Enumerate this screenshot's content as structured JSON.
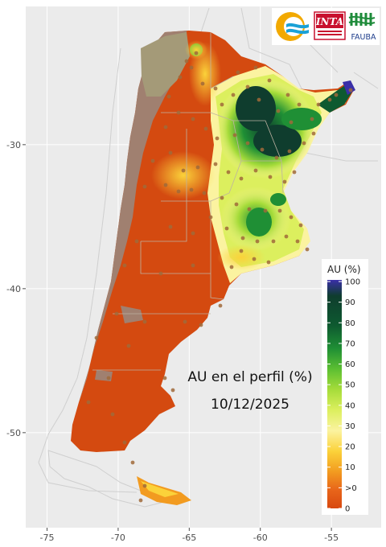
{
  "map": {
    "title": "AU en el perfil (%)",
    "date": "10/12/2025",
    "x_axis": {
      "lon_range": [
        -76.5,
        -51.5
      ],
      "ticks": [
        {
          "lon": -75,
          "label": "-75"
        },
        {
          "lon": -70,
          "label": "-70"
        },
        {
          "lon": -65,
          "label": "-65"
        },
        {
          "lon": -60,
          "label": "-60"
        },
        {
          "lon": -55,
          "label": "-55"
        }
      ]
    },
    "y_axis": {
      "lat_range": [
        -56.6,
        -20.4
      ],
      "ticks": [
        {
          "lat": -30,
          "label": "-30"
        },
        {
          "lat": -40,
          "label": "-40"
        },
        {
          "lat": -50,
          "label": "-50"
        }
      ]
    },
    "grid": true,
    "legend": {
      "title": "AU (%)",
      "position": "right",
      "labels": [
        "100",
        "90",
        "80",
        "70",
        "60",
        "50",
        "40",
        "30",
        "20",
        "10",
        ">0",
        "0"
      ],
      "colors": {
        "100": "#3a2fa8",
        "90": "#0f3d2e",
        "80": "#0e5a30",
        "70": "#1f8f35",
        "60": "#5cbf32",
        "50": "#a6dc3a",
        "40": "#dcef5e",
        "30": "#fbf3a0",
        "20": "#fbd23a",
        "10": "#f29b20",
        ">0": "#e8651a",
        "0": "#d8480f"
      }
    },
    "logos": [
      {
        "name": "INTA",
        "text": "INTA"
      },
      {
        "name": "FAUBA",
        "text": "FAUBA"
      }
    ],
    "colors": {
      "panel_bg": "#ebebeb",
      "gridline": "#ffffff",
      "land_dry": "#d44a10",
      "mountain": "#a08070",
      "country_border": "#cfcfcf",
      "station": "#a06a3a"
    }
  }
}
